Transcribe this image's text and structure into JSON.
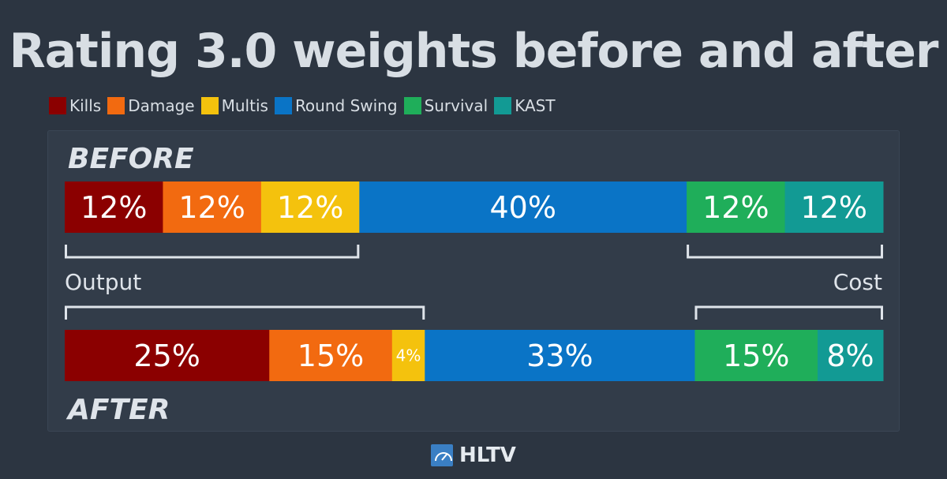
{
  "title": "Rating 3.0 weights before and after",
  "legend": [
    {
      "label": "Kills",
      "color": "#8b0000"
    },
    {
      "label": "Damage",
      "color": "#f26a10"
    },
    {
      "label": "Multis",
      "color": "#f4c20d"
    },
    {
      "label": "Round Swing",
      "color": "#0a74c6"
    },
    {
      "label": "Survival",
      "color": "#1fae5a"
    },
    {
      "label": "KAST",
      "color": "#129a94"
    }
  ],
  "chart_data": {
    "type": "bar",
    "orientation": "horizontal-stacked",
    "categories": [
      "Kills",
      "Damage",
      "Multis",
      "Round Swing",
      "Survival",
      "KAST"
    ],
    "series": [
      {
        "name": "BEFORE",
        "values": [
          12,
          12,
          12,
          40,
          12,
          12
        ],
        "labels": [
          "12%",
          "12%",
          "12%",
          "40%",
          "12%",
          "12%"
        ]
      },
      {
        "name": "AFTER",
        "values": [
          25,
          15,
          4,
          33,
          15,
          8
        ],
        "labels": [
          "25%",
          "15%",
          "4%",
          "33%",
          "15%",
          "8%"
        ]
      }
    ],
    "groups": [
      {
        "label": "Output",
        "categories": [
          "Kills",
          "Damage",
          "Multis"
        ]
      },
      {
        "label": "Cost",
        "categories": [
          "Survival",
          "KAST"
        ]
      }
    ],
    "colors": [
      "#8b0000",
      "#f26a10",
      "#f4c20d",
      "#0a74c6",
      "#1fae5a",
      "#129a94"
    ],
    "total": 100
  },
  "brand": {
    "name": "HLTV",
    "icon": "hltv-gauge-icon"
  }
}
